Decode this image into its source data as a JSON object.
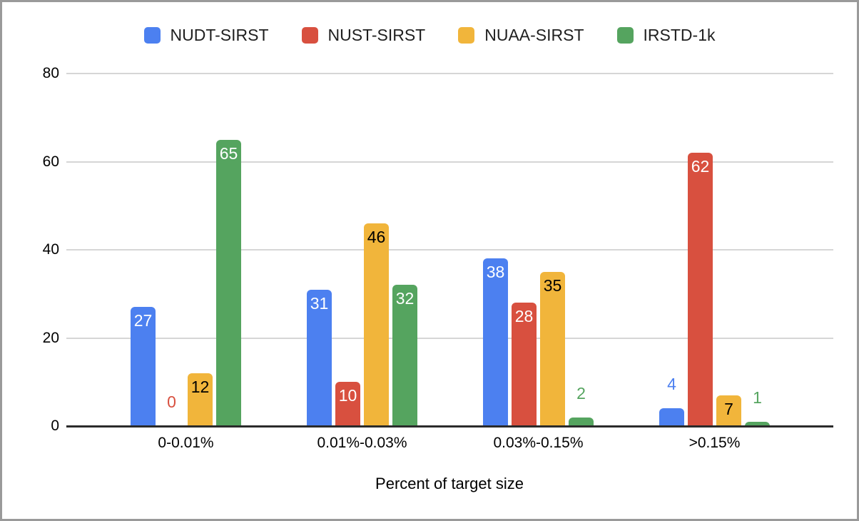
{
  "frame": {
    "background": "#ffffff",
    "border_color": "#9a9a9a"
  },
  "legend": {
    "position": "top",
    "items": [
      {
        "label": "NUDT-SIRST",
        "color": "#4C80F0"
      },
      {
        "label": "NUST-SIRST",
        "color": "#D8503F"
      },
      {
        "label": "NUAA-SIRST",
        "color": "#F1B53B"
      },
      {
        "label": "IRSTD-1k",
        "color": "#55A45F"
      }
    ]
  },
  "chart_data": {
    "type": "bar",
    "title": "",
    "xlabel": "Percent of target size",
    "ylabel": "",
    "categories": [
      "0-0.01%",
      "0.01%-0.03%",
      "0.03%-0.15%",
      ">0.15%"
    ],
    "series": [
      {
        "name": "NUDT-SIRST",
        "color": "#4C80F0",
        "inside_label_color": "#ffffff",
        "values": [
          27,
          31,
          38,
          4
        ]
      },
      {
        "name": "NUST-SIRST",
        "color": "#D8503F",
        "inside_label_color": "#ffffff",
        "values": [
          0,
          10,
          28,
          62
        ]
      },
      {
        "name": "NUAA-SIRST",
        "color": "#F1B53B",
        "inside_label_color": "#000000",
        "values": [
          12,
          46,
          35,
          7
        ]
      },
      {
        "name": "IRSTD-1k",
        "color": "#55A45F",
        "inside_label_color": "#ffffff",
        "values": [
          65,
          32,
          2,
          1
        ]
      }
    ],
    "ylim": [
      0,
      80
    ],
    "yticks": [
      0,
      20,
      40,
      60,
      80
    ],
    "grid": true,
    "legend_position": "top",
    "data_labels": true,
    "gridline_color": "#d6d6d6",
    "baseline_color": "#2b2b2b"
  }
}
